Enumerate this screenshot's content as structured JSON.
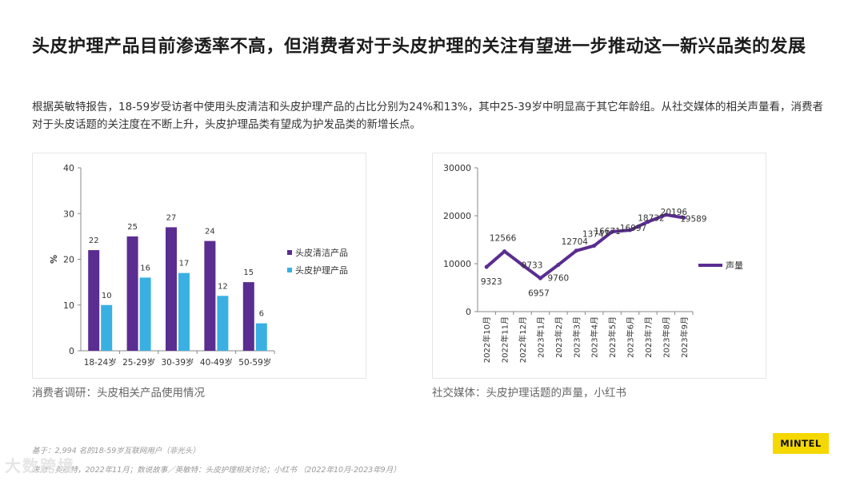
{
  "title": "头皮护理产品目前渗透率不高，但消费者对于头皮护理的关注有望进一步推动这一新兴品类的发展",
  "description": "根据英敏特报告，18-59岁受访者中使用头皮清洁和头皮护理产品的占比分别为24%和13%，其中25-39岁中明显高于其它年龄组。从社交媒体的相关声量看，消费者对于头皮话题的关注度在不断上升，头皮护理品类有望成为护发品类的新增长点。",
  "colors": {
    "series_a": "#5a2d91",
    "series_b": "#3ab0e2",
    "line": "#5a2d91",
    "logo": "#f5d800"
  },
  "chart_data": [
    {
      "type": "bar",
      "categories": [
        "18-24岁",
        "25-29岁",
        "30-39岁",
        "40-49岁",
        "50-59岁"
      ],
      "series": [
        {
          "name": "头皮清洁产品",
          "values": [
            22,
            25,
            27,
            24,
            15
          ]
        },
        {
          "name": "头皮护理产品",
          "values": [
            10,
            16,
            17,
            12,
            6
          ]
        }
      ],
      "ylabel": "%",
      "ylim": [
        0,
        40
      ],
      "yticks": [
        "0",
        "10",
        "20",
        "30",
        "40"
      ],
      "legend": "right"
    },
    {
      "type": "line",
      "categories": [
        "2022年10月",
        "2022年11月",
        "2022年12月",
        "2023年1月",
        "2023年2月",
        "2023年3月",
        "2023年4月",
        "2023年5月",
        "2023年6月",
        "2023年7月",
        "2023年8月",
        "2023年9月"
      ],
      "series": [
        {
          "name": "声量",
          "values": [
            9323,
            12566,
            9733,
            6957,
            9760,
            12704,
            13747,
            16671,
            16997,
            18732,
            20196,
            19589
          ]
        }
      ],
      "data_labels": [
        "9323",
        "12566",
        "9733",
        "6957",
        "9760",
        "12704",
        "13747",
        "16671",
        "16997",
        "18732",
        "20196",
        "19589"
      ],
      "ylim": [
        0,
        30000
      ],
      "yticks": [
        "0",
        "10000",
        "20000",
        "30000"
      ],
      "legend": "right"
    }
  ],
  "captions": {
    "left": "消费者调研：头皮相关产品使用情况",
    "right": "社交媒体：头皮护理话题的声量，小红书"
  },
  "footnotes": {
    "base": "基于：2,994 名的18-59岁互联网用户（非光头）",
    "source": "来源：英敏特，2022年11月；数说故事／英敏特：头皮护理相关讨论；小红书 （2022年10月-2023年9月）"
  },
  "watermark": "大数跨境",
  "logo": "MINTEL"
}
